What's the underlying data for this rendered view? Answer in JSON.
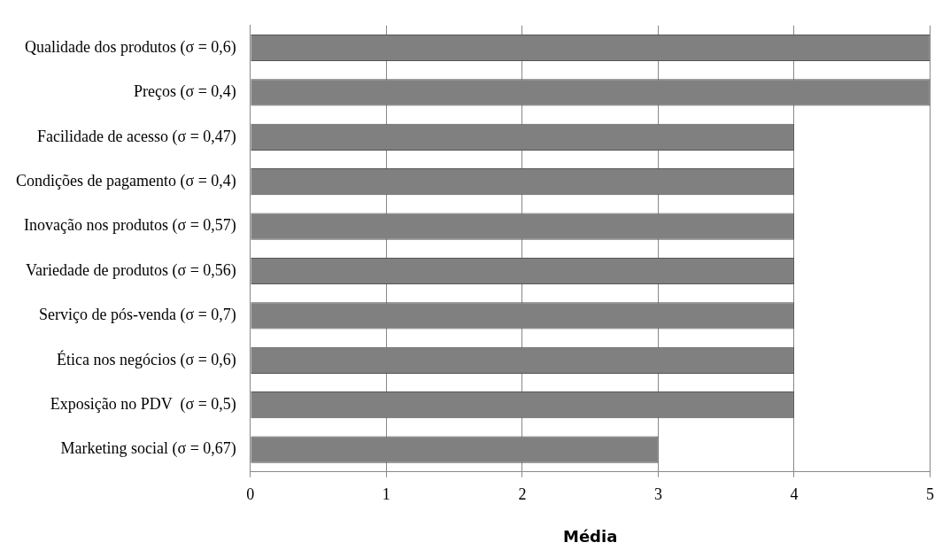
{
  "chart_data": {
    "type": "bar",
    "orientation": "horizontal",
    "xlabel": "Média",
    "categories": [
      "Qualidade dos produtos (σ = 0,6)",
      "Preços (σ = 0,4)",
      "Facilidade de acesso (σ = 0,47)",
      "Condições de pagamento (σ = 0,4)",
      "Inovação nos produtos (σ = 0,57)",
      "Variedade de produtos (σ = 0,56)",
      "Serviço de pós-venda (σ = 0,7)",
      "Ética nos negócios (σ = 0,6)",
      "Exposição no PDV  (σ = 0,5)",
      "Marketing social (σ = 0,67)"
    ],
    "values": [
      5,
      5,
      4,
      4,
      4,
      4,
      4,
      4,
      4,
      3
    ],
    "color": "#808080",
    "xlim": [
      0,
      5
    ],
    "xticks": [
      0,
      1,
      2,
      3,
      4,
      5
    ],
    "grid": "x",
    "legend": false
  }
}
